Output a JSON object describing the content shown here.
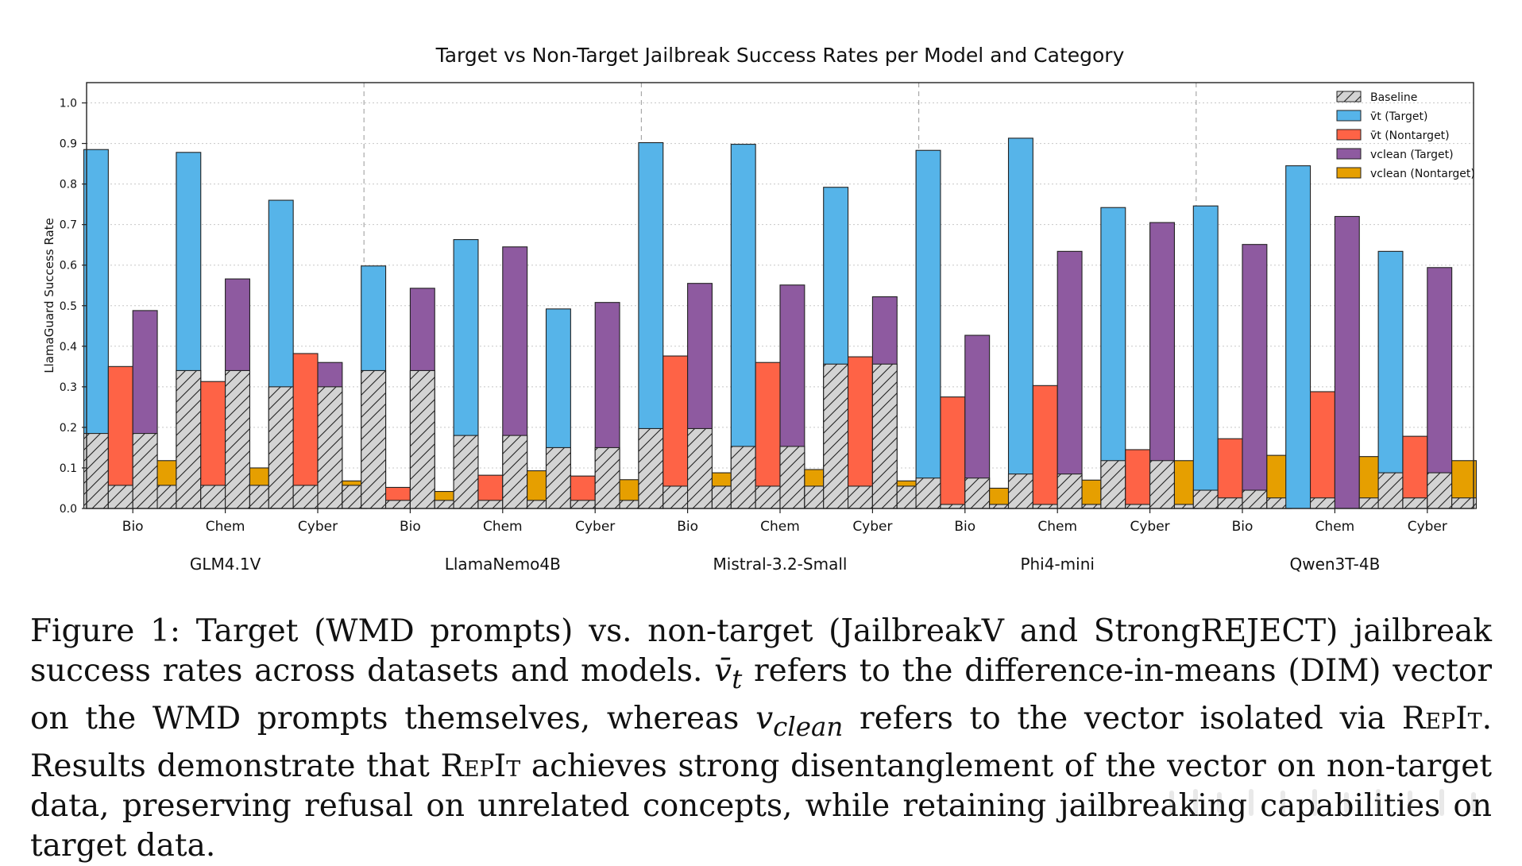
{
  "chart_data": {
    "type": "bar",
    "title": "Target vs Non-Target Jailbreak Success Rates per Model and Category",
    "ylabel": "LlamaGuard Success Rate",
    "xlabel": "",
    "ylim": [
      0,
      1.05
    ],
    "yticks": [
      "0.0",
      "0.1",
      "0.2",
      "0.3",
      "0.4",
      "0.5",
      "0.6",
      "0.7",
      "0.8",
      "0.9",
      "1.0"
    ],
    "grid": true,
    "legend_position": "top-right",
    "categories": [
      "Bio",
      "Chem",
      "Cyber"
    ],
    "models": [
      "GLM4.1V",
      "LlamaNemo4B",
      "Mistral-3.2-Small",
      "Phi4-mini",
      "Qwen3T-4B"
    ],
    "legend": [
      {
        "key": "baseline",
        "label": "Baseline",
        "color": "#d3d3d3"
      },
      {
        "key": "vt_target",
        "label": "v̄t (Target)",
        "color": "#56b4e9"
      },
      {
        "key": "vt_nontarget",
        "label": "v̄t (Nontarget)",
        "color": "#fe6346"
      },
      {
        "key": "vclean_target",
        "label": "vclean (Target)",
        "color": "#8e5aa0"
      },
      {
        "key": "vclean_nontarget",
        "label": "vclean (Nontarget)",
        "color": "#e69f00"
      }
    ],
    "series": [
      {
        "name": "v̄t (Target)",
        "key": "vt_target",
        "values": [
          [
            0.885,
            0.878,
            0.76
          ],
          [
            0.598,
            0.663,
            0.492
          ],
          [
            0.902,
            0.898,
            0.792
          ],
          [
            0.883,
            0.913,
            0.742
          ],
          [
            0.746,
            0.845,
            0.634
          ]
        ]
      },
      {
        "name": "v̄t (Target) baseline",
        "key": "vt_target_base",
        "values": [
          [
            0.185,
            0.34,
            0.3
          ],
          [
            0.34,
            0.18,
            0.15
          ],
          [
            0.197,
            0.153,
            0.356
          ],
          [
            0.075,
            0.085,
            0.118
          ],
          [
            0.045,
            0.0,
            0.088
          ]
        ]
      },
      {
        "name": "v̄t (Nontarget)",
        "key": "vt_nontarget",
        "values": [
          [
            0.35,
            0.313,
            0.382
          ],
          [
            0.052,
            0.082,
            0.08
          ],
          [
            0.376,
            0.36,
            0.374
          ],
          [
            0.275,
            0.303,
            0.145
          ],
          [
            0.172,
            0.288,
            0.178
          ]
        ]
      },
      {
        "name": "v̄t (Nontarget) baseline",
        "key": "vt_nontarget_base",
        "values": [
          [
            0.057,
            0.057,
            0.057
          ],
          [
            0.02,
            0.02,
            0.02
          ],
          [
            0.055,
            0.055,
            0.055
          ],
          [
            0.01,
            0.01,
            0.01
          ],
          [
            0.026,
            0.026,
            0.026
          ]
        ]
      },
      {
        "name": "vclean (Target)",
        "key": "vclean_target",
        "values": [
          [
            0.488,
            0.566,
            0.36
          ],
          [
            0.543,
            0.645,
            0.508
          ],
          [
            0.555,
            0.551,
            0.522
          ],
          [
            0.427,
            0.634,
            0.705
          ],
          [
            0.651,
            0.72,
            0.594
          ]
        ]
      },
      {
        "name": "vclean (Target) baseline",
        "key": "vclean_target_base",
        "values": [
          [
            0.185,
            0.34,
            0.3
          ],
          [
            0.34,
            0.18,
            0.15
          ],
          [
            0.197,
            0.153,
            0.356
          ],
          [
            0.075,
            0.085,
            0.118
          ],
          [
            0.045,
            0.0,
            0.088
          ]
        ]
      },
      {
        "name": "vclean (Nontarget)",
        "key": "vclean_nontarget",
        "values": [
          [
            0.118,
            0.1,
            0.068
          ],
          [
            0.042,
            0.093,
            0.071
          ],
          [
            0.088,
            0.096,
            0.068
          ],
          [
            0.05,
            0.07,
            0.118
          ],
          [
            0.131,
            0.128,
            0.118
          ]
        ]
      },
      {
        "name": "vclean (Nontarget) baseline",
        "key": "vclean_nontarget_base",
        "values": [
          [
            0.057,
            0.057,
            0.057
          ],
          [
            0.02,
            0.02,
            0.02
          ],
          [
            0.055,
            0.055,
            0.055
          ],
          [
            0.01,
            0.01,
            0.01
          ],
          [
            0.026,
            0.026,
            0.026
          ]
        ]
      }
    ]
  },
  "caption": {
    "label": "Figure 1:",
    "part1": "Target (WMD prompts) vs. non-target (JailbreakV and StrongREJECT) jailbreak success rates across datasets and models.",
    "vt_symbol": "v̄",
    "vt_sub": "t",
    "part2": "refers to the difference-in-means (DIM) vector on the WMD prompts themselves, whereas",
    "vclean_symbol": "v",
    "vclean_sub": "clean",
    "part3": "refers to the vector isolated via",
    "repit1": "RepIt",
    "part4": ". Results demonstrate that",
    "repit2": "RepIt",
    "part5": "achieves strong disentanglement of the vector on non-target data, preserving refusal on unrelated concepts, while retaining jailbreaking capabilities on target data."
  }
}
